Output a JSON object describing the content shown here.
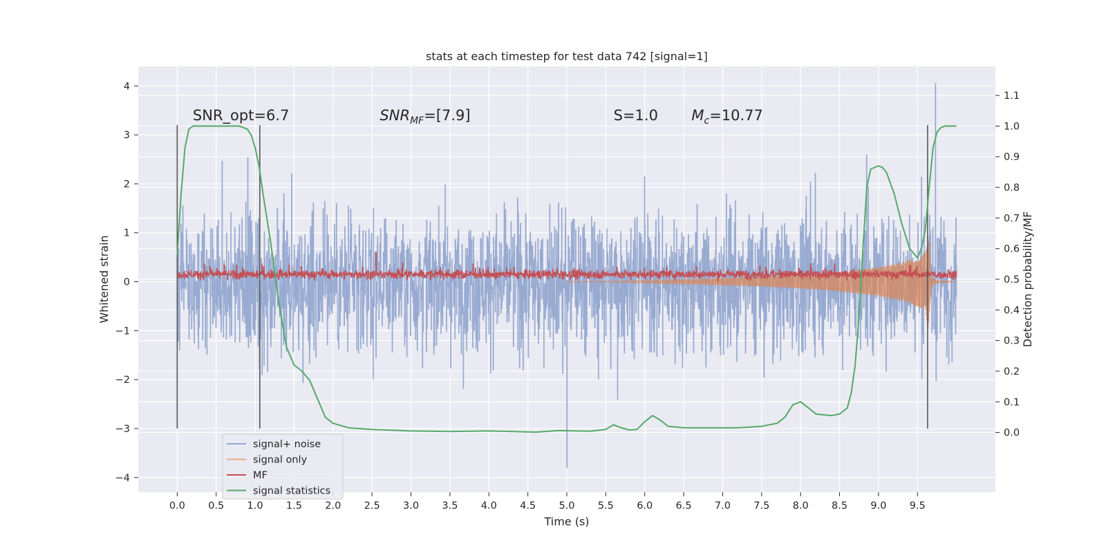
{
  "chart_data": {
    "type": "line",
    "title": "stats at each timestep for test data 742 [signal=1]",
    "xlabel": "Time (s)",
    "ylabel_left": "Whitened strain",
    "ylabel_right": "Detection probability/MF",
    "xlim": [
      -0.5,
      10.5
    ],
    "ylim_left": [
      -4.3,
      4.4
    ],
    "ylim_right": [
      -0.195,
      1.195
    ],
    "x_ticks": [
      "0.0",
      "0.5",
      "1.0",
      "1.5",
      "2.0",
      "2.5",
      "3.0",
      "3.5",
      "4.0",
      "4.5",
      "5.0",
      "5.5",
      "6.0",
      "6.5",
      "7.0",
      "7.5",
      "8.0",
      "8.5",
      "9.0",
      "9.5"
    ],
    "y_ticks_left": [
      "4",
      "3",
      "2",
      "1",
      "0",
      "−1",
      "−2",
      "−3",
      "−4"
    ],
    "y_ticks_right": [
      "1.1",
      "1.0",
      "0.9",
      "0.8",
      "0.7",
      "0.6",
      "0.5",
      "0.4",
      "0.3",
      "0.2",
      "0.1",
      "0.0"
    ],
    "grid": true,
    "legend_position": "lower-left",
    "annotations": [
      {
        "text": "SNR_opt=6.7",
        "x": 0.2,
        "y": 3.3
      },
      {
        "text_main": "SNR",
        "text_sub": "MF",
        "text_rest": "=[7.9]",
        "x": 2.6,
        "y": 3.3
      },
      {
        "text": "S=1.0",
        "x": 5.6,
        "y": 3.3
      },
      {
        "text_main": "M",
        "text_sub": "c",
        "text_rest": "=10.77",
        "x": 6.6,
        "y": 3.3
      }
    ],
    "vertical_lines": [
      {
        "x": 0.0,
        "y_range": [
          -3.0,
          3.2
        ]
      },
      {
        "x": 1.06,
        "y_range": [
          -3.0,
          3.2
        ]
      },
      {
        "x": 9.63,
        "y_range": [
          -3.0,
          3.2
        ]
      }
    ],
    "series": [
      {
        "name": "signal+ noise",
        "color": "#92a6cf",
        "axis": "left",
        "duration": 10.0,
        "spread": 1.1,
        "min": -3.8,
        "max": 4.05
      },
      {
        "name": "signal only",
        "color": "#dd8452",
        "axis": "left",
        "envelope_x": [
          5.5,
          6.5,
          7.5,
          8.0,
          8.5,
          9.0,
          9.3,
          9.5,
          9.6,
          9.64,
          9.68,
          9.75,
          10.0
        ],
        "envelope_y": [
          0.01,
          0.05,
          0.1,
          0.14,
          0.2,
          0.3,
          0.4,
          0.5,
          0.6,
          1.0,
          0.1,
          0.02,
          0.0
        ]
      },
      {
        "name": "MF",
        "color": "#c44e52",
        "axis": "left",
        "base": 0.15,
        "max": 0.6
      },
      {
        "name": "signal statistics",
        "color": "#55a868",
        "axis": "right",
        "x": [
          0.0,
          0.05,
          0.1,
          0.15,
          0.2,
          0.3,
          0.5,
          0.7,
          0.8,
          0.9,
          0.95,
          1.0,
          1.05,
          1.1,
          1.2,
          1.3,
          1.4,
          1.5,
          1.6,
          1.7,
          1.8,
          1.9,
          2.0,
          2.2,
          2.5,
          3.0,
          3.5,
          4.0,
          4.3,
          4.6,
          4.9,
          5.1,
          5.3,
          5.5,
          5.6,
          5.7,
          5.8,
          5.9,
          6.0,
          6.1,
          6.2,
          6.3,
          6.5,
          6.8,
          7.2,
          7.5,
          7.7,
          7.8,
          7.9,
          8.0,
          8.1,
          8.2,
          8.4,
          8.5,
          8.6,
          8.65,
          8.7,
          8.75,
          8.8,
          8.85,
          8.9,
          9.0,
          9.05,
          9.1,
          9.2,
          9.3,
          9.4,
          9.5,
          9.55,
          9.6,
          9.65,
          9.7,
          9.75,
          9.8,
          9.85,
          9.9,
          10.0
        ],
        "y": [
          0.58,
          0.78,
          0.93,
          0.99,
          1.0,
          1.0,
          1.0,
          1.0,
          1.0,
          0.99,
          0.97,
          0.93,
          0.87,
          0.78,
          0.62,
          0.43,
          0.28,
          0.22,
          0.2,
          0.17,
          0.11,
          0.05,
          0.03,
          0.015,
          0.01,
          0.005,
          0.003,
          0.005,
          0.003,
          0.001,
          0.006,
          0.005,
          0.004,
          0.01,
          0.025,
          0.015,
          0.008,
          0.01,
          0.035,
          0.055,
          0.04,
          0.02,
          0.015,
          0.015,
          0.015,
          0.02,
          0.03,
          0.05,
          0.09,
          0.1,
          0.08,
          0.06,
          0.055,
          0.06,
          0.08,
          0.13,
          0.22,
          0.38,
          0.6,
          0.8,
          0.86,
          0.87,
          0.865,
          0.85,
          0.78,
          0.68,
          0.6,
          0.57,
          0.6,
          0.66,
          0.8,
          0.93,
          0.98,
          0.995,
          1.0,
          1.0,
          1.0
        ]
      }
    ]
  }
}
